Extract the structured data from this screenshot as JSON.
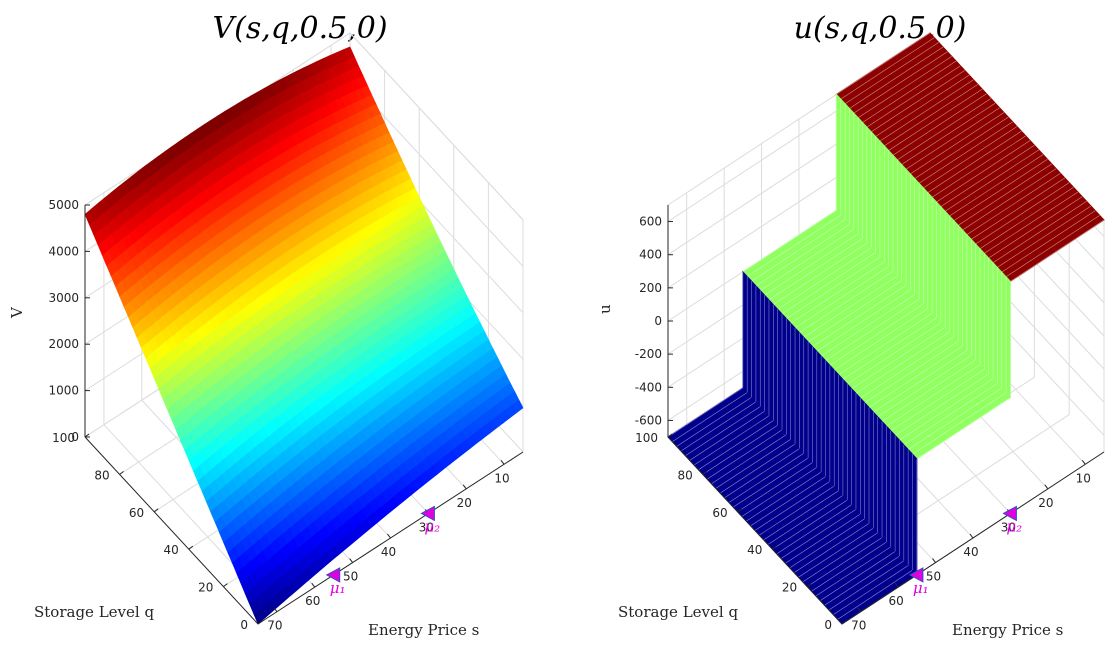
{
  "chart_data": [
    {
      "type": "surface",
      "title": "V(s,q,0.5,0)",
      "xlabel": "Energy Price s",
      "ylabel": "Storage Level q",
      "zlabel": "V",
      "colormap": "jet",
      "x_ticks": [
        "10",
        "20",
        "30",
        "40",
        "50",
        "60",
        "70"
      ],
      "y_ticks": [
        "0",
        "20",
        "40",
        "60",
        "80",
        "100"
      ],
      "z_ticks": [
        "0",
        "1000",
        "2000",
        "3000",
        "4000",
        "5000"
      ],
      "xlim": [
        5,
        75
      ],
      "ylim": [
        0,
        100
      ],
      "zlim": [
        0,
        5000
      ],
      "corner_values": [
        {
          "s": 75,
          "q": 100,
          "V": 4800
        },
        {
          "s": 5,
          "q": 100,
          "V": 4700
        },
        {
          "s": 5,
          "q": 0,
          "V": 950
        },
        {
          "s": 75,
          "q": 0,
          "V": 0
        }
      ],
      "markers": [
        {
          "label": "μ₂",
          "s": 30
        },
        {
          "label": "μ₁",
          "s": 55
        }
      ]
    },
    {
      "type": "mesh",
      "title": "u(s,q,0.5,0)",
      "xlabel": "Energy Price s",
      "ylabel": "Storage Level q",
      "zlabel": "u",
      "x_ticks": [
        "10",
        "20",
        "30",
        "40",
        "50",
        "60",
        "70"
      ],
      "y_ticks": [
        "0",
        "20",
        "40",
        "60",
        "80",
        "100"
      ],
      "z_ticks": [
        "-600",
        "-400",
        "-200",
        "0",
        "200",
        "400",
        "600"
      ],
      "xlim": [
        5,
        75
      ],
      "ylim": [
        0,
        100
      ],
      "zlim": [
        -700,
        700
      ],
      "levels": [
        {
          "u": -700,
          "s_from": 55,
          "s_to": 75,
          "color": "#00008c"
        },
        {
          "u": 0,
          "s_from": 30,
          "s_to": 55,
          "color": "#90ff60"
        },
        {
          "u": 700,
          "s_from": 5,
          "s_to": 30,
          "color": "#8c0000"
        }
      ],
      "markers": [
        {
          "label": "μ₂",
          "s": 30
        },
        {
          "label": "μ₁",
          "s": 55
        }
      ]
    }
  ]
}
